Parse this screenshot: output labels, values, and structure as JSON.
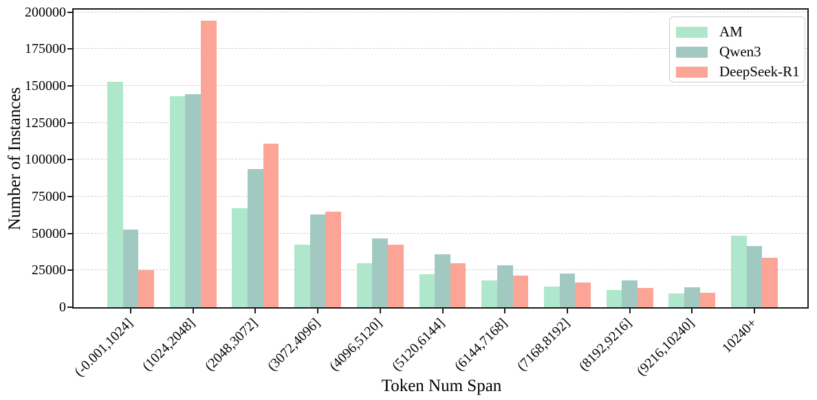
{
  "chart_data": {
    "type": "bar",
    "title": "",
    "xlabel": "Token Num Span",
    "ylabel": "Number of Instances",
    "categories": [
      "(-0.001,1024]",
      "(1024,2048]",
      "(2048,3072]",
      "(3072,4096]",
      "(4096,5120]",
      "(5120,6144]",
      "(6144,7168]",
      "(7168,8192]",
      "(8192,9216]",
      "(9216,10240]",
      "10240+"
    ],
    "series": [
      {
        "name": "AM",
        "color": "#aee7cc",
        "values": [
          153000,
          143000,
          67000,
          42500,
          30000,
          22500,
          18000,
          14000,
          11500,
          9500,
          48500
        ]
      },
      {
        "name": "Qwen3",
        "color": "#a2c8c2",
        "values": [
          52500,
          144500,
          93500,
          63000,
          46500,
          36000,
          28500,
          23000,
          18000,
          13500,
          41500
        ]
      },
      {
        "name": "DeepSeek-R1",
        "color": "#fca597",
        "values": [
          25000,
          194500,
          111000,
          65000,
          42500,
          30000,
          21500,
          17000,
          13000,
          10000,
          33500
        ]
      }
    ],
    "ylim": [
      0,
      200000
    ],
    "yticks": [
      0,
      25000,
      50000,
      75000,
      100000,
      125000,
      150000,
      175000,
      200000
    ],
    "grid": {
      "axis": "y",
      "style": "dashed",
      "color": "#cfcfcf"
    },
    "legend": {
      "position": "upper-right",
      "entries": [
        "AM",
        "Qwen3",
        "DeepSeek-R1"
      ]
    },
    "frame_color": "#1a1a1a"
  }
}
